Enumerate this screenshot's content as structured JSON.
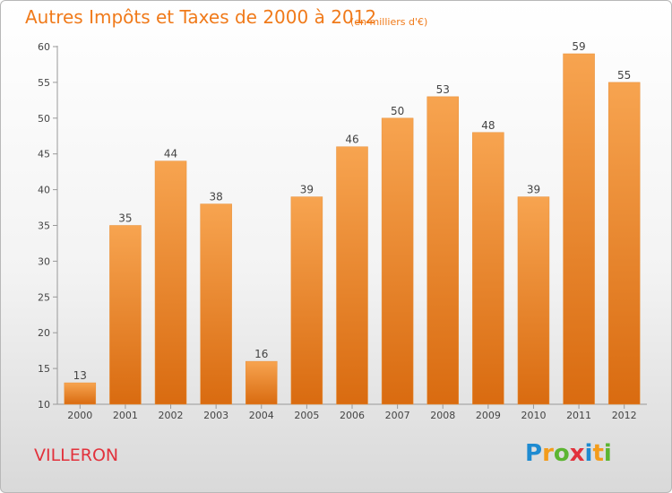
{
  "title": "Autres Impôts et Taxes de 2000 à 2012",
  "subtitle": "(en milliers d'€)",
  "place": "VILLERON",
  "logo": {
    "letters": [
      "P",
      "r",
      "o",
      "x",
      "i",
      "t",
      "i"
    ]
  },
  "colors": {
    "bar_top": "#f7a450",
    "bar_bottom": "#d96b10",
    "title": "#f07a1a",
    "place": "#e2323c"
  },
  "chart_data": {
    "type": "bar",
    "categories": [
      "2000",
      "2001",
      "2002",
      "2003",
      "2004",
      "2005",
      "2006",
      "2007",
      "2008",
      "2009",
      "2010",
      "2011",
      "2012"
    ],
    "values": [
      13,
      35,
      44,
      38,
      16,
      39,
      46,
      50,
      53,
      48,
      39,
      59,
      55
    ],
    "ylim": [
      10,
      60
    ],
    "yticks": [
      10,
      15,
      20,
      25,
      30,
      35,
      40,
      45,
      50,
      55,
      60
    ],
    "grid": false,
    "data_labels": true
  }
}
